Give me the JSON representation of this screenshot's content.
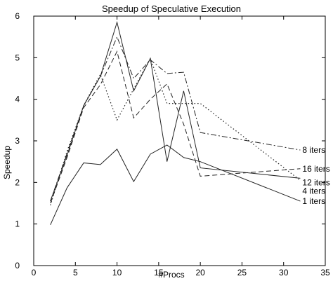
{
  "chart_data": {
    "type": "line",
    "title": "Speedup of Speculative Execution",
    "xlabel": "#Procs",
    "ylabel": "Speedup",
    "xlim": [
      0,
      35
    ],
    "ylim": [
      0,
      6
    ],
    "xticks": [
      0,
      5,
      10,
      15,
      20,
      25,
      30,
      35
    ],
    "yticks": [
      0,
      1,
      2,
      3,
      4,
      5,
      6
    ],
    "grid": false,
    "legend": "inline labels at right end of each line",
    "series": [
      {
        "name": "8 iters",
        "style": "dashdot",
        "x": [
          2,
          4,
          6,
          8,
          10,
          12,
          14,
          16,
          18,
          20,
          32
        ],
        "y": [
          1.55,
          2.7,
          3.85,
          4.55,
          5.5,
          4.5,
          4.95,
          4.62,
          4.65,
          3.2,
          2.78
        ]
      },
      {
        "name": "16 iters",
        "style": "dashed",
        "x": [
          2,
          4,
          6,
          8,
          10,
          12,
          14,
          16,
          18,
          20,
          32
        ],
        "y": [
          1.5,
          2.6,
          3.8,
          4.35,
          5.15,
          3.55,
          4.0,
          4.37,
          3.4,
          2.15,
          2.33
        ]
      },
      {
        "name": "12 iters",
        "style": "dotted",
        "x": [
          2,
          4,
          6,
          8,
          10,
          12,
          14,
          16,
          18,
          20,
          32
        ],
        "y": [
          1.45,
          2.75,
          3.85,
          4.6,
          3.5,
          4.25,
          4.98,
          3.9,
          3.9,
          3.9,
          2.05
        ]
      },
      {
        "name": "4 iters",
        "style": "solid",
        "x": [
          2,
          4,
          6,
          8,
          10,
          12,
          14,
          16,
          18,
          20,
          32
        ],
        "y": [
          1.55,
          2.65,
          3.85,
          4.55,
          5.85,
          4.2,
          4.98,
          2.5,
          4.2,
          2.35,
          2.1
        ]
      },
      {
        "name": "1 iters",
        "style": "solid",
        "x": [
          2,
          4,
          6,
          8,
          10,
          12,
          14,
          16,
          18,
          20,
          32
        ],
        "y": [
          0.98,
          1.87,
          2.47,
          2.43,
          2.8,
          2.02,
          2.68,
          2.9,
          2.6,
          2.5,
          1.55
        ]
      }
    ]
  },
  "colors": {
    "line": "#222222",
    "axis": "#000000",
    "background": "#ffffff"
  }
}
